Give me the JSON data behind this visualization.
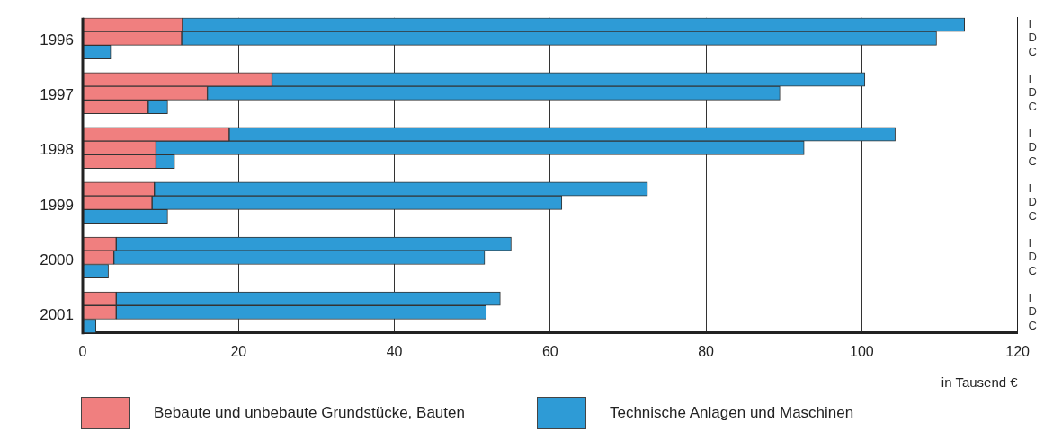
{
  "chart_data": {
    "type": "bar",
    "orientation": "horizontal",
    "stacked": true,
    "categories": [
      "I",
      "D",
      "C",
      null,
      "I",
      "D",
      "C",
      null,
      "I",
      "D",
      "C",
      null,
      "I",
      "D",
      "C",
      null,
      "I",
      "D",
      "C",
      null,
      "I",
      "D",
      "C"
    ],
    "series": [
      {
        "name": "Bebaute und unbebaute Grundstücke, Bauten",
        "color": "#f07f7f",
        "values": [
          12.8,
          12.7,
          null,
          null,
          24.3,
          16.0,
          8.4,
          null,
          18.8,
          9.4,
          9.4,
          null,
          9.2,
          8.9,
          null,
          null,
          4.3,
          4.0,
          null,
          null,
          4.3,
          4.3,
          null
        ]
      },
      {
        "name": "Technische Anlagen und Maschinen",
        "color": "#2e9bd6",
        "values": [
          100.4,
          96.9,
          3.6,
          null,
          76.1,
          73.5,
          2.5,
          null,
          85.5,
          83.2,
          2.4,
          null,
          63.3,
          52.6,
          10.9,
          null,
          50.7,
          47.6,
          3.3,
          null,
          49.3,
          47.5,
          1.7
        ]
      }
    ],
    "xlim": [
      0,
      120
    ],
    "xticks": [
      0,
      20,
      40,
      60,
      80,
      100,
      120
    ],
    "xlabel": "in Tausend €",
    "annotations": [
      "1996",
      "1997",
      "1998",
      "1999",
      "2000",
      "2001"
    ],
    "grid": "x",
    "legend": "bottom"
  }
}
